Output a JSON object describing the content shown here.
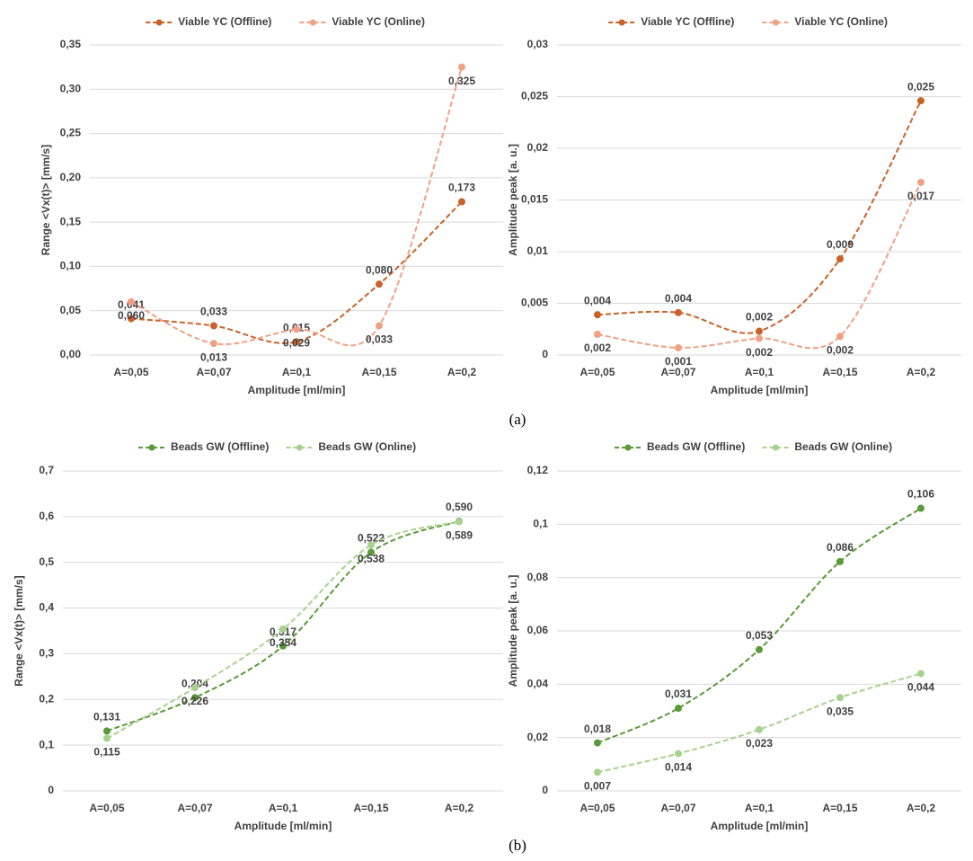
{
  "chart_data": [
    {
      "type": "line",
      "x_label": "Amplitude [ml/min]",
      "y_label": "Range <Vx(t)> [mm/s]",
      "categories": [
        "A=0,05",
        "A=0,07",
        "A=0,1",
        "A=0,15",
        "A=0,2"
      ],
      "series": [
        {
          "name": "Viable YC (Offline)",
          "color": "#c9622a",
          "values": [
            0.041,
            0.033,
            0.015,
            0.08,
            0.173
          ],
          "value_labels": [
            "0,041",
            "0,033",
            "0,015",
            "0,080",
            "0,173"
          ]
        },
        {
          "name": "Viable YC (Online)",
          "color": "#f0a083",
          "values": [
            0.06,
            0.013,
            0.029,
            0.033,
            0.325
          ],
          "value_labels": [
            "0,060",
            "0,013",
            "0,029",
            "0,033",
            "0,325"
          ]
        }
      ],
      "ylim": [
        0,
        0.35
      ],
      "yticks": [
        {
          "value": 0,
          "label": "0,00"
        },
        {
          "value": 0.05,
          "label": "0,05"
        },
        {
          "value": 0.1,
          "label": "0,10"
        },
        {
          "value": 0.15,
          "label": "0,15"
        },
        {
          "value": 0.2,
          "label": "0,20"
        },
        {
          "value": 0.25,
          "label": "0,25"
        },
        {
          "value": 0.3,
          "label": "0,30"
        },
        {
          "value": 0.35,
          "label": "0,35"
        }
      ],
      "grid": true,
      "legend": "top"
    },
    {
      "type": "line",
      "x_label": "Amplitude [ml/min]",
      "y_label": "Amplitude peak [a. u.]",
      "categories": [
        "A=0,05",
        "A=0,07",
        "A=0,1",
        "A=0,15",
        "A=0,2"
      ],
      "series": [
        {
          "name": "Viable YC (Offline)",
          "color": "#c9622a",
          "values": [
            0.0039,
            0.0041,
            0.0023,
            0.0093,
            0.0246
          ],
          "value_labels": [
            "0,004",
            "0,004",
            "0,002",
            "0,009",
            "0,025"
          ]
        },
        {
          "name": "Viable YC (Online)",
          "color": "#f0a083",
          "values": [
            0.002,
            0.0007,
            0.0016,
            0.0018,
            0.0167
          ],
          "value_labels": [
            "0,002",
            "0,001",
            "0,002",
            "0,002",
            "0,017"
          ]
        }
      ],
      "ylim": [
        0,
        0.03
      ],
      "yticks": [
        0,
        {
          "value": 0.005,
          "label": "0,005"
        },
        {
          "value": 0.01,
          "label": "0,01"
        },
        {
          "value": 0.015,
          "label": "0,015"
        },
        {
          "value": 0.02,
          "label": "0,02"
        },
        {
          "value": 0.025,
          "label": "0,025"
        },
        {
          "value": 0.03,
          "label": "0,03"
        }
      ],
      "grid": true,
      "legend": "top"
    },
    {
      "type": "line",
      "x_label": "Amplitude [ml/min]",
      "y_label": "Range <Vx(t)> [mm/s]",
      "categories": [
        "A=0,05",
        "A=0,07",
        "A=0,1",
        "A=0,15",
        "A=0,2"
      ],
      "series": [
        {
          "name": "Beads GW (Offline)",
          "color": "#5b9a3b",
          "values": [
            0.131,
            0.204,
            0.317,
            0.522,
            0.59
          ],
          "value_labels": [
            "0,131",
            "0,204",
            "0,317",
            "0,522",
            "0,590"
          ]
        },
        {
          "name": "Beads GW (Online)",
          "color": "#a9d18e",
          "values": [
            0.115,
            0.226,
            0.354,
            0.538,
            0.589
          ],
          "value_labels": [
            "0,115",
            "0,226",
            "0,354",
            "0,538",
            "0,589"
          ]
        }
      ],
      "ylim": [
        0,
        0.7
      ],
      "yticks": [
        0,
        {
          "value": 0.1,
          "label": "0,1"
        },
        {
          "value": 0.2,
          "label": "0,2"
        },
        {
          "value": 0.3,
          "label": "0,3"
        },
        {
          "value": 0.4,
          "label": "0,4"
        },
        {
          "value": 0.5,
          "label": "0,5"
        },
        {
          "value": 0.6,
          "label": "0,6"
        },
        {
          "value": 0.7,
          "label": "0,7"
        }
      ],
      "grid": true,
      "legend": "top"
    },
    {
      "type": "line",
      "x_label": "Amplitude [ml/min]",
      "y_label": "Amplitude peak [a. u.]",
      "categories": [
        "A=0,05",
        "A=0,07",
        "A=0,1",
        "A=0,15",
        "A=0,2"
      ],
      "series": [
        {
          "name": "Beads GW (Offline)",
          "color": "#5b9a3b",
          "values": [
            0.018,
            0.031,
            0.053,
            0.086,
            0.106
          ],
          "value_labels": [
            "0,018",
            "0,031",
            "0,053",
            "0,086",
            "0,106"
          ]
        },
        {
          "name": "Beads GW (Online)",
          "color": "#a9d18e",
          "values": [
            0.007,
            0.014,
            0.023,
            0.035,
            0.044
          ],
          "value_labels": [
            "0,007",
            "0,014",
            "0,023",
            "0,035",
            "0,044"
          ]
        }
      ],
      "ylim": [
        0,
        0.12
      ],
      "yticks": [
        0,
        {
          "value": 0.02,
          "label": "0,02"
        },
        {
          "value": 0.04,
          "label": "0,04"
        },
        {
          "value": 0.06,
          "label": "0,06"
        },
        {
          "value": 0.08,
          "label": "0,08"
        },
        {
          "value": 0.1,
          "label": "0,1"
        },
        {
          "value": 0.12,
          "label": "0,12"
        }
      ],
      "grid": true,
      "legend": "top"
    }
  ],
  "captions": [
    "(a)",
    "(b)"
  ]
}
